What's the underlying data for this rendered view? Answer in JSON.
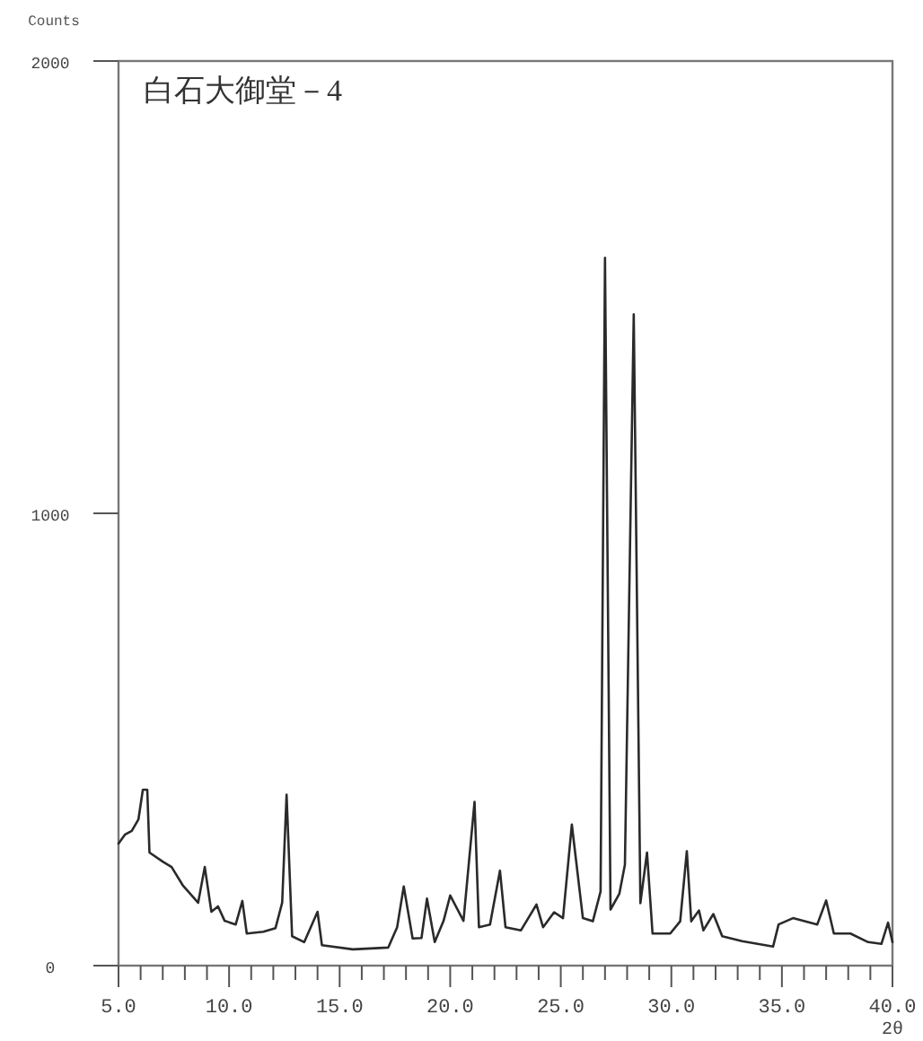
{
  "chart_data": {
    "type": "line",
    "title": "白石大御堂－4",
    "ylabel": "Counts",
    "xlabel": "2θ",
    "xlim": [
      5,
      40
    ],
    "ylim": [
      0,
      2000
    ],
    "xticks": [
      {
        "value": 5,
        "label": "5.0"
      },
      {
        "value": 6,
        "label": null
      },
      {
        "value": 7,
        "label": null
      },
      {
        "value": 8,
        "label": null
      },
      {
        "value": 9,
        "label": null
      },
      {
        "value": 10,
        "label": "10.0"
      },
      {
        "value": 11,
        "label": null
      },
      {
        "value": 12,
        "label": null
      },
      {
        "value": 13,
        "label": null
      },
      {
        "value": 14,
        "label": null
      },
      {
        "value": 15,
        "label": "15.0"
      },
      {
        "value": 16,
        "label": null
      },
      {
        "value": 17,
        "label": null
      },
      {
        "value": 18,
        "label": null
      },
      {
        "value": 19,
        "label": null
      },
      {
        "value": 20,
        "label": "20.0"
      },
      {
        "value": 21,
        "label": null
      },
      {
        "value": 22,
        "label": null
      },
      {
        "value": 23,
        "label": null
      },
      {
        "value": 24,
        "label": null
      },
      {
        "value": 25,
        "label": "25.0"
      },
      {
        "value": 26,
        "label": null
      },
      {
        "value": 27,
        "label": null
      },
      {
        "value": 28,
        "label": null
      },
      {
        "value": 29,
        "label": null
      },
      {
        "value": 30,
        "label": "30.0"
      },
      {
        "value": 31,
        "label": null
      },
      {
        "value": 32,
        "label": null
      },
      {
        "value": 33,
        "label": null
      },
      {
        "value": 34,
        "label": null
      },
      {
        "value": 35,
        "label": "35.0"
      },
      {
        "value": 36,
        "label": null
      },
      {
        "value": 37,
        "label": null
      },
      {
        "value": 38,
        "label": null
      },
      {
        "value": 39,
        "label": null
      },
      {
        "value": 40,
        "label": "40.0"
      }
    ],
    "yticks": [
      0,
      1000,
      2000
    ],
    "series": [
      {
        "color": "#2a2a2a",
        "x": [
          5.0,
          5.3,
          5.6,
          5.9,
          6.1,
          6.3,
          6.4,
          7.0,
          7.4,
          7.9,
          8.6,
          8.9,
          9.2,
          9.5,
          9.8,
          10.3,
          10.6,
          10.8,
          11.55,
          12.1,
          12.4,
          12.6,
          12.85,
          13.4,
          14.0,
          14.2,
          15.6,
          17.2,
          17.6,
          17.9,
          18.3,
          18.7,
          18.95,
          19.3,
          19.7,
          20.0,
          20.6,
          21.1,
          21.3,
          21.8,
          22.25,
          22.5,
          23.2,
          23.9,
          24.2,
          24.7,
          25.1,
          25.5,
          26.0,
          26.45,
          26.8,
          27.0,
          27.25,
          27.65,
          27.9,
          28.3,
          28.6,
          28.9,
          29.15,
          29.95,
          30.4,
          30.7,
          30.9,
          31.25,
          31.45,
          31.9,
          32.3,
          33.2,
          34.6,
          34.85,
          35.5,
          36.6,
          37.0,
          37.35,
          38.1,
          38.9,
          39.5,
          39.8,
          40.0
        ],
        "values": [
          270,
          290,
          298,
          323,
          389,
          389,
          250,
          230,
          218,
          178,
          139,
          218,
          119,
          131,
          99,
          91,
          143,
          71,
          75,
          83,
          139,
          378,
          65,
          52,
          119,
          45,
          36,
          40,
          85,
          175,
          60,
          61,
          148,
          52,
          99,
          155,
          99,
          362,
          85,
          91,
          210,
          85,
          78,
          135,
          85,
          118,
          105,
          312,
          105,
          98,
          164,
          1565,
          124,
          159,
          223,
          1440,
          138,
          250,
          71,
          71,
          98,
          253,
          98,
          122,
          78,
          114,
          65,
          54,
          42,
          91,
          105,
          91,
          144,
          71,
          71,
          52,
          48,
          95,
          52
        ]
      }
    ]
  }
}
